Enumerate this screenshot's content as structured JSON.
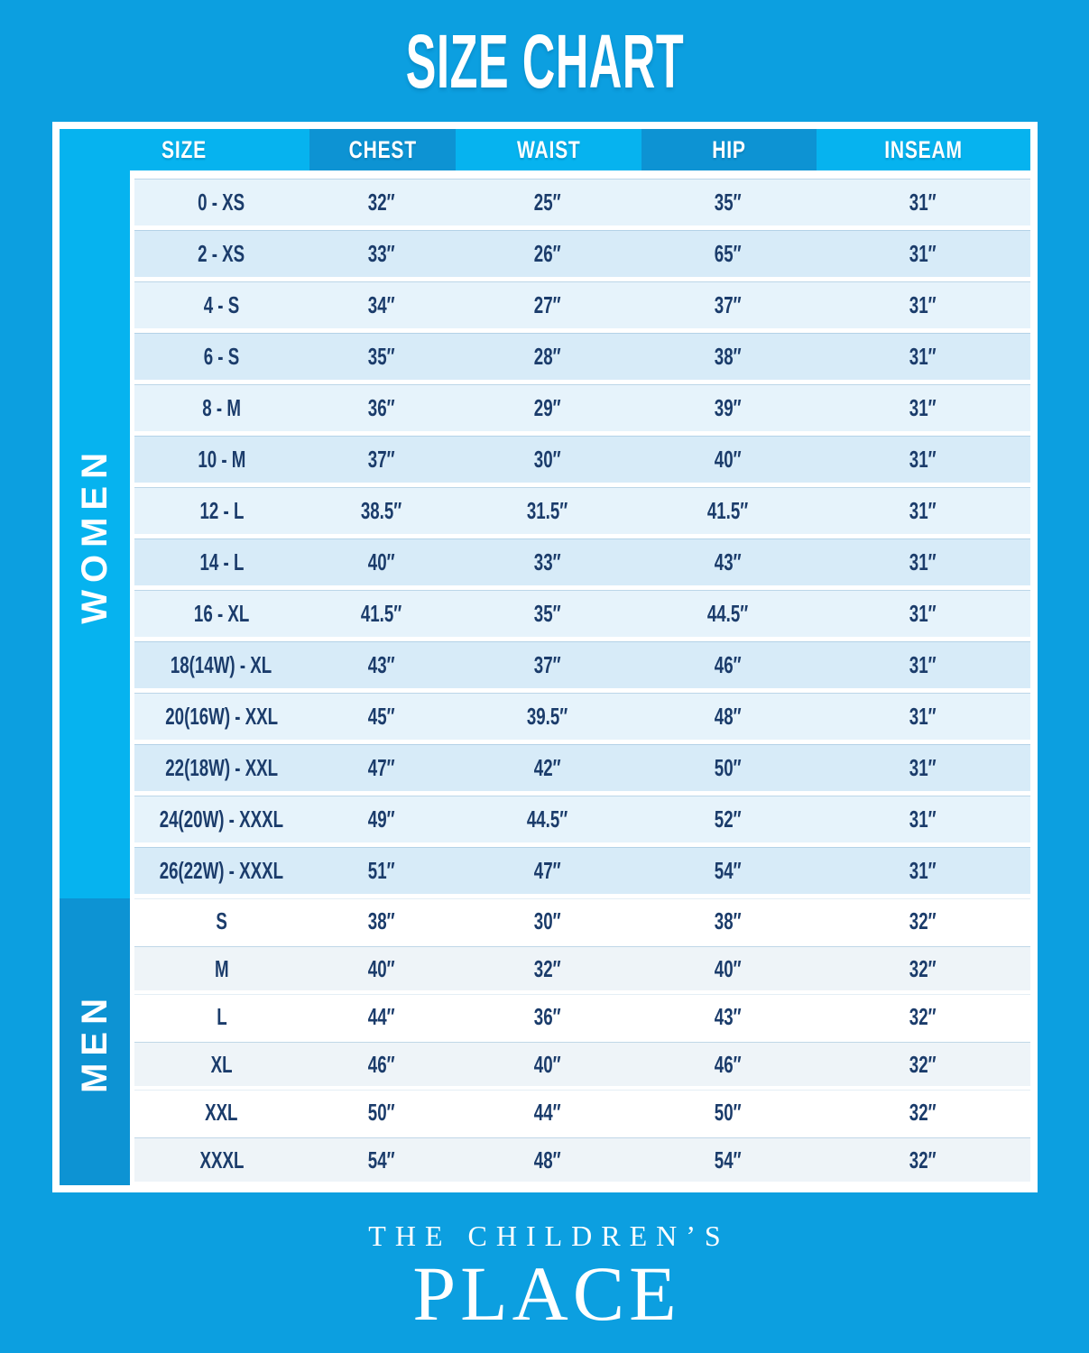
{
  "page": {
    "title": "SIZE CHART"
  },
  "table": {
    "columns": [
      "SIZE",
      "CHEST",
      "WAIST",
      "HIP",
      "INSEAM"
    ],
    "sections": [
      {
        "label": "WOMEN",
        "rows": [
          {
            "size": "0 - XS",
            "chest": "32″",
            "waist": "25″",
            "hip": "35″",
            "inseam": "31″"
          },
          {
            "size": "2 - XS",
            "chest": "33″",
            "waist": "26″",
            "hip": "65″",
            "inseam": "31″"
          },
          {
            "size": "4 - S",
            "chest": "34″",
            "waist": "27″",
            "hip": "37″",
            "inseam": "31″"
          },
          {
            "size": "6 - S",
            "chest": "35″",
            "waist": "28″",
            "hip": "38″",
            "inseam": "31″"
          },
          {
            "size": "8 - M",
            "chest": "36″",
            "waist": "29″",
            "hip": "39″",
            "inseam": "31″"
          },
          {
            "size": "10 - M",
            "chest": "37″",
            "waist": "30″",
            "hip": "40″",
            "inseam": "31″"
          },
          {
            "size": "12 - L",
            "chest": "38.5″",
            "waist": "31.5″",
            "hip": "41.5″",
            "inseam": "31″"
          },
          {
            "size": "14 - L",
            "chest": "40″",
            "waist": "33″",
            "hip": "43″",
            "inseam": "31″"
          },
          {
            "size": "16 - XL",
            "chest": "41.5″",
            "waist": "35″",
            "hip": "44.5″",
            "inseam": "31″"
          },
          {
            "size": "18(14W) - XL",
            "chest": "43″",
            "waist": "37″",
            "hip": "46″",
            "inseam": "31″"
          },
          {
            "size": "20(16W) - XXL",
            "chest": "45″",
            "waist": "39.5″",
            "hip": "48″",
            "inseam": "31″"
          },
          {
            "size": "22(18W) - XXL",
            "chest": "47″",
            "waist": "42″",
            "hip": "50″",
            "inseam": "31″"
          },
          {
            "size": "24(20W) - XXXL",
            "chest": "49″",
            "waist": "44.5″",
            "hip": "52″",
            "inseam": "31″"
          },
          {
            "size": "26(22W) - XXXL",
            "chest": "51″",
            "waist": "47″",
            "hip": "54″",
            "inseam": "31″"
          }
        ]
      },
      {
        "label": "MEN",
        "rows": [
          {
            "size": "S",
            "chest": "38″",
            "waist": "30″",
            "hip": "38″",
            "inseam": "32″"
          },
          {
            "size": "M",
            "chest": "40″",
            "waist": "32″",
            "hip": "40″",
            "inseam": "32″"
          },
          {
            "size": "L",
            "chest": "44″",
            "waist": "36″",
            "hip": "43″",
            "inseam": "32″"
          },
          {
            "size": "XL",
            "chest": "46″",
            "waist": "40″",
            "hip": "46″",
            "inseam": "32″"
          },
          {
            "size": "XXL",
            "chest": "50″",
            "waist": "44″",
            "hip": "50″",
            "inseam": "32″"
          },
          {
            "size": "XXXL",
            "chest": "54″",
            "waist": "48″",
            "hip": "54″",
            "inseam": "32″"
          }
        ]
      }
    ]
  },
  "footer": {
    "line1": "THE CHILDREN’S",
    "line2": "PLACE"
  },
  "colors": {
    "background": "#0C9FE0",
    "header_light": "#06B3EF",
    "header_dark": "#0D93D3",
    "women_row_light": "#E6F3FB",
    "women_row_dark": "#D7EBF8",
    "men_row_light": "#FFFFFF",
    "men_row_alt": "#EEF4F8",
    "data_text": "#1B3C6B",
    "frame": "#FFFFFF"
  }
}
